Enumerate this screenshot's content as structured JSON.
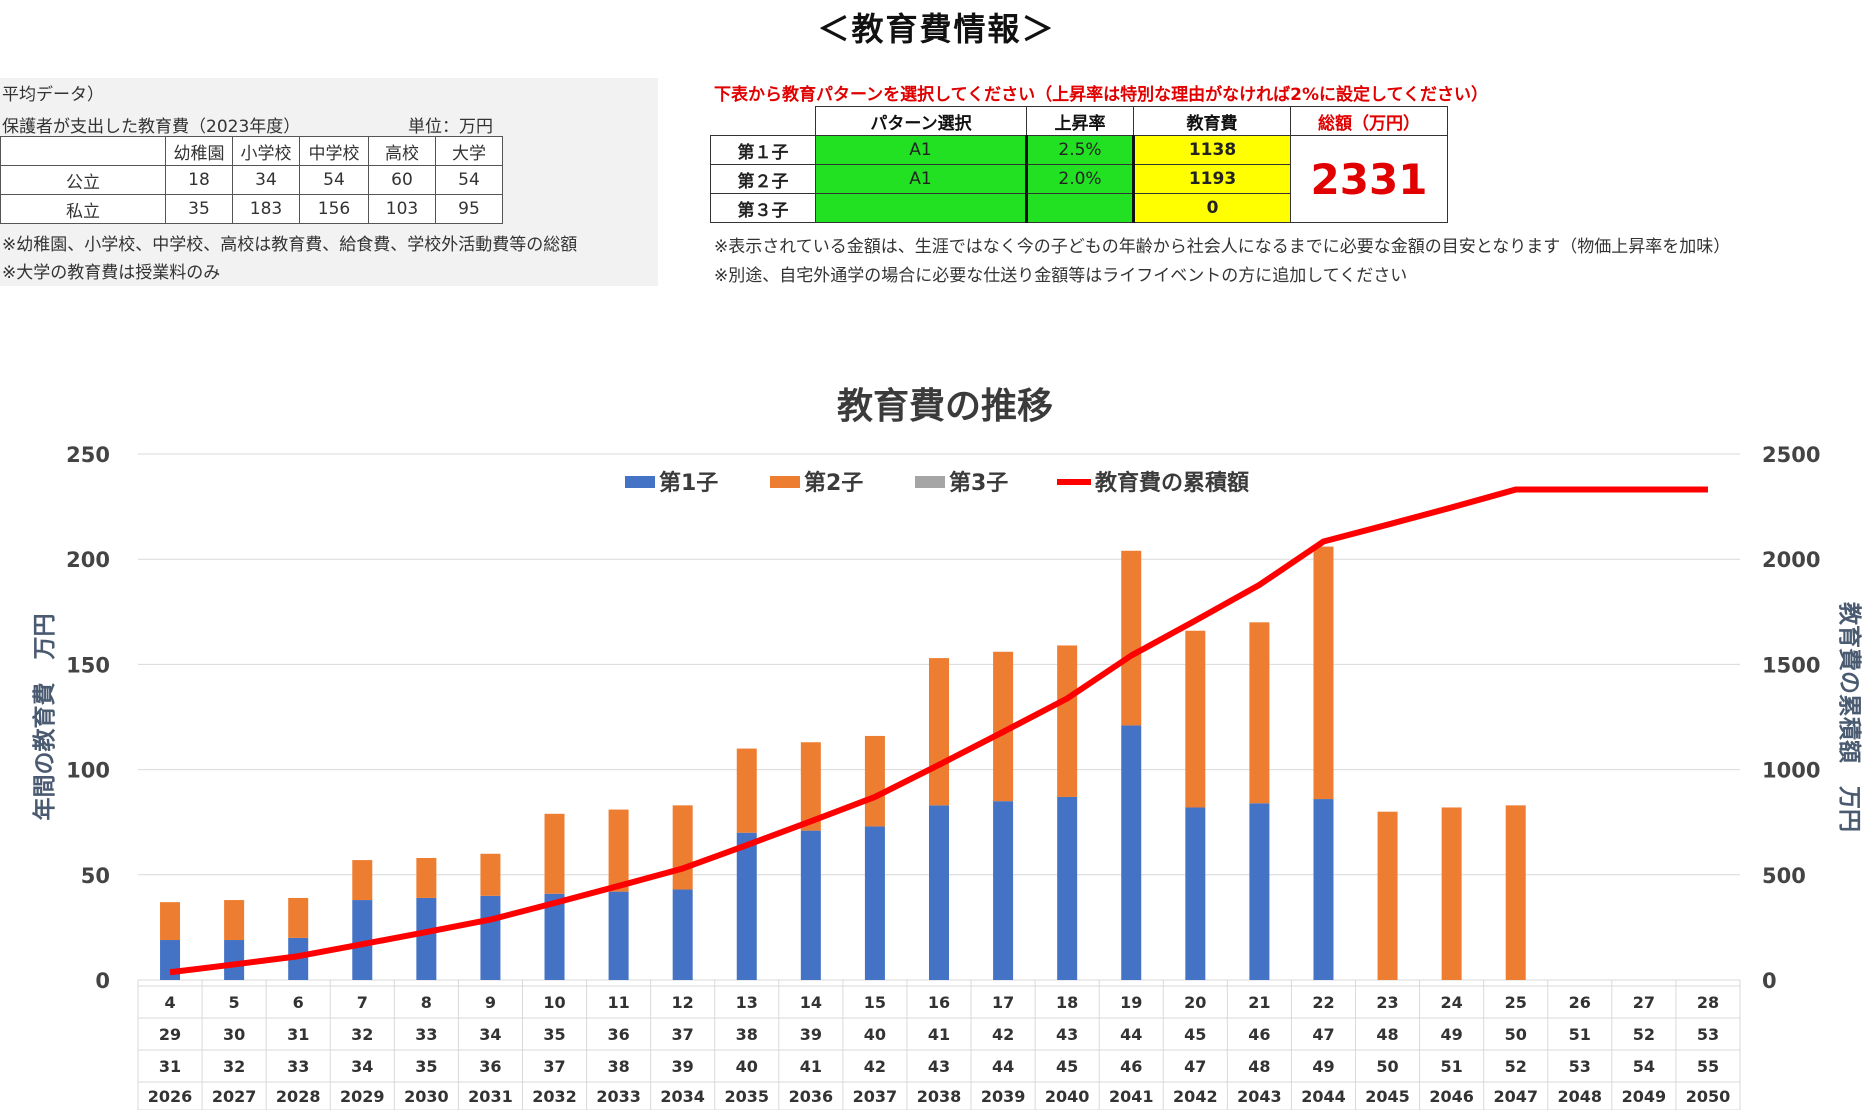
{
  "page": {
    "title": "＜教育費情報＞"
  },
  "reference": {
    "line1": "平均データ）",
    "line2": "保護者が支出した教育費（2023年度）",
    "unit": "単位：万円",
    "headers": [
      "",
      "幼稚園",
      "小学校",
      "中学校",
      "高校",
      "大学"
    ],
    "rows": [
      {
        "label": "公立",
        "values": [
          "18",
          "34",
          "54",
          "60",
          "54"
        ]
      },
      {
        "label": "私立",
        "values": [
          "35",
          "183",
          "156",
          "103",
          "95"
        ]
      }
    ],
    "note1": "※幼稚園、小学校、中学校、高校は教育費、給食費、学校外活動費等の総額",
    "note2": "※大学の教育費は授業料のみ"
  },
  "selection": {
    "instruction": "下表から教育パターンを選択してください（上昇率は特別な理由がなければ2%に設定してください）",
    "headers": {
      "pattern": "パターン選択",
      "rate": "上昇率",
      "cost": "教育費",
      "total": "総額（万円）"
    },
    "rows": [
      {
        "label": "第１子",
        "pattern": "A1",
        "rate": "2.5%",
        "cost": "1138"
      },
      {
        "label": "第２子",
        "pattern": "A1",
        "rate": "2.0%",
        "cost": "1193"
      },
      {
        "label": "第３子",
        "pattern": "",
        "rate": "",
        "cost": "0"
      }
    ],
    "total": "2331",
    "note1": "※表示されている金額は、生涯ではなく今の子どもの年齢から社会人になるまでに必要な金額の目安となります（物価上昇率を加味）",
    "note2": "※別途、自宅外通学の場合に必要な仕送り金額等はライフイベントの方に追加してください"
  },
  "chart_data": {
    "type": "bar",
    "title": "教育費の推移",
    "ylabel": "年間の教育費　万円",
    "y2label": "教育費の累積額　万円",
    "ylim": [
      0,
      250
    ],
    "y2lim": [
      0,
      2500
    ],
    "yticks": [
      0,
      50,
      100,
      150,
      200,
      250
    ],
    "y2ticks": [
      0,
      500,
      1000,
      1500,
      2000,
      2500
    ],
    "legend_position": "top",
    "grid": true,
    "categories_row1": [
      "4",
      "5",
      "6",
      "7",
      "8",
      "9",
      "10",
      "11",
      "12",
      "13",
      "14",
      "15",
      "16",
      "17",
      "18",
      "19",
      "20",
      "21",
      "22",
      "23",
      "24",
      "25",
      "26",
      "27",
      "28"
    ],
    "categories_row2": [
      "29",
      "30",
      "31",
      "32",
      "33",
      "34",
      "35",
      "36",
      "37",
      "38",
      "39",
      "40",
      "41",
      "42",
      "43",
      "44",
      "45",
      "46",
      "47",
      "48",
      "49",
      "50",
      "51",
      "52",
      "53"
    ],
    "categories_row3": [
      "31",
      "32",
      "33",
      "34",
      "35",
      "36",
      "37",
      "38",
      "39",
      "40",
      "41",
      "42",
      "43",
      "44",
      "45",
      "46",
      "47",
      "48",
      "49",
      "50",
      "51",
      "52",
      "53",
      "54",
      "55"
    ],
    "categories": [
      "2026",
      "2027",
      "2028",
      "2029",
      "2030",
      "2031",
      "2032",
      "2033",
      "2034",
      "2035",
      "2036",
      "2037",
      "2038",
      "2039",
      "2040",
      "2041",
      "2042",
      "2043",
      "2044",
      "2045",
      "2046",
      "2047",
      "2048",
      "2049",
      "2050"
    ],
    "series": [
      {
        "name": "第1子",
        "color": "#4472c4",
        "values": [
          19,
          19,
          20,
          38,
          39,
          40,
          41,
          42,
          43,
          70,
          71,
          73,
          83,
          85,
          87,
          121,
          82,
          84,
          86,
          0,
          0,
          0,
          0,
          0,
          0
        ]
      },
      {
        "name": "第2子",
        "color": "#ed7d31",
        "values": [
          18,
          19,
          19,
          19,
          19,
          20,
          38,
          39,
          40,
          40,
          42,
          43,
          70,
          71,
          72,
          83,
          84,
          86,
          120,
          80,
          82,
          83,
          0,
          0,
          0
        ]
      },
      {
        "name": "第3子",
        "color": "#a5a5a5",
        "values": [
          0,
          0,
          0,
          0,
          0,
          0,
          0,
          0,
          0,
          0,
          0,
          0,
          0,
          0,
          0,
          0,
          0,
          0,
          0,
          0,
          0,
          0,
          0,
          0,
          0
        ]
      },
      {
        "name": "教育費の累積額",
        "color": "#ff0000",
        "type": "line",
        "axis": "secondary",
        "values": [
          37,
          74,
          113,
          170,
          228,
          287,
          366,
          447,
          530,
          641,
          754,
          870,
          1023,
          1179,
          1338,
          1542,
          1708,
          1878,
          2084,
          2164,
          2246,
          2331,
          2331,
          2331,
          2331
        ]
      }
    ]
  }
}
